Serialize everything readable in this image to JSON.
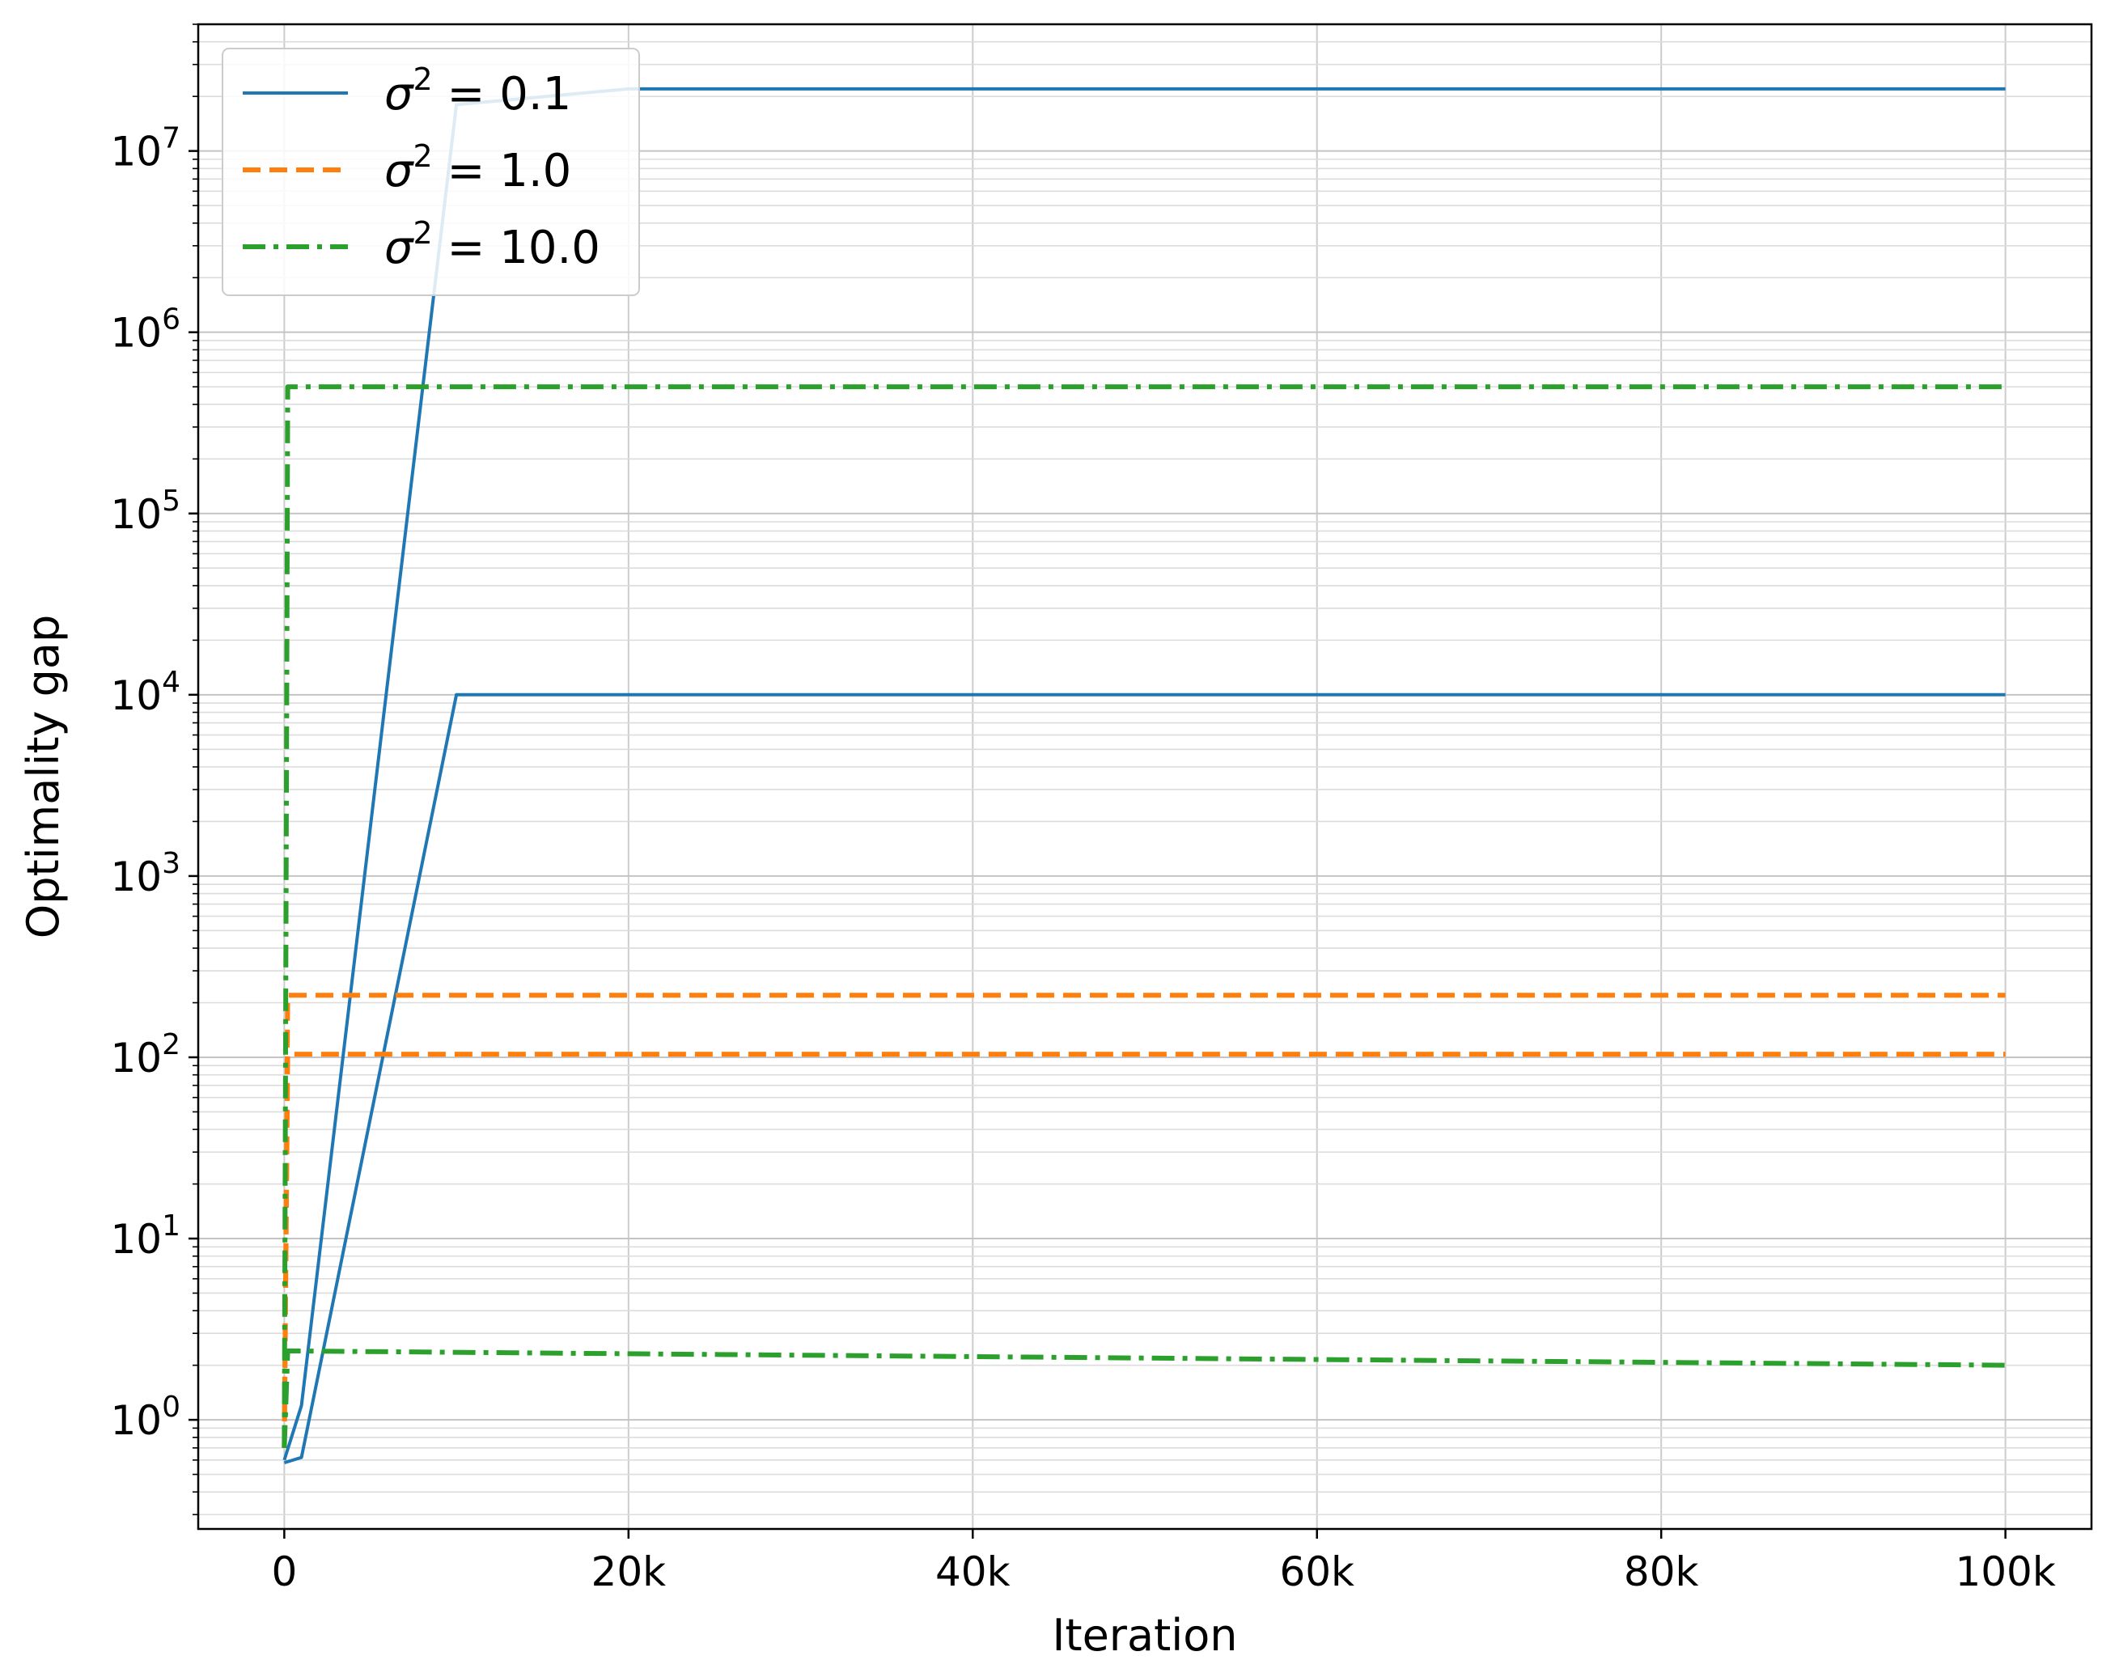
{
  "chart_data": {
    "type": "line",
    "title": "",
    "xlabel": "Iteration",
    "ylabel": "Optimality gap",
    "x_scale": "linear",
    "y_scale": "log",
    "xlim": [
      -5000,
      105000
    ],
    "ylim": [
      0.25,
      50000000
    ],
    "x_ticks": [
      {
        "value": 0,
        "label": "0"
      },
      {
        "value": 20000,
        "label": "20k"
      },
      {
        "value": 40000,
        "label": "40k"
      },
      {
        "value": 60000,
        "label": "60k"
      },
      {
        "value": 80000,
        "label": "80k"
      },
      {
        "value": 100000,
        "label": "100k"
      }
    ],
    "y_ticks": [
      {
        "exp": 0,
        "base": "10",
        "sup": "0"
      },
      {
        "exp": 1,
        "base": "10",
        "sup": "1"
      },
      {
        "exp": 2,
        "base": "10",
        "sup": "2"
      },
      {
        "exp": 3,
        "base": "10",
        "sup": "3"
      },
      {
        "exp": 4,
        "base": "10",
        "sup": "4"
      },
      {
        "exp": 5,
        "base": "10",
        "sup": "5"
      },
      {
        "exp": 6,
        "base": "10",
        "sup": "6"
      },
      {
        "exp": 7,
        "base": "10",
        "sup": "7"
      }
    ],
    "grid": true,
    "grid_minor": true,
    "legend_position": "top-left",
    "legend": [
      {
        "sigma": "σ",
        "sup": "2",
        "eq": " = 0.1",
        "color": "#1f77b4",
        "style": "solid"
      },
      {
        "sigma": "σ",
        "sup": "2",
        "eq": " = 1.0",
        "color": "#ff7f0e",
        "style": "dashed"
      },
      {
        "sigma": "σ",
        "sup": "2",
        "eq": " = 10.0",
        "color": "#2ca02c",
        "style": "dashdot"
      }
    ],
    "series": [
      {
        "group": 0,
        "color": "#1f77b4",
        "style": "solid",
        "points": [
          [
            0,
            0.6
          ],
          [
            1000,
            1.2
          ],
          [
            10000,
            18000000
          ],
          [
            20000,
            22000000
          ],
          [
            100000,
            22000000
          ]
        ]
      },
      {
        "group": 0,
        "color": "#1f77b4",
        "style": "solid",
        "points": [
          [
            0,
            0.58
          ],
          [
            1000,
            0.62
          ],
          [
            10000,
            10000
          ],
          [
            100000,
            10000
          ]
        ]
      },
      {
        "group": 1,
        "color": "#ff7f0e",
        "style": "dashed",
        "points": [
          [
            0,
            0.7
          ],
          [
            200,
            220
          ],
          [
            100000,
            220
          ]
        ]
      },
      {
        "group": 1,
        "color": "#ff7f0e",
        "style": "dashed",
        "points": [
          [
            0,
            0.7
          ],
          [
            200,
            104
          ],
          [
            100000,
            104
          ]
        ]
      },
      {
        "group": 2,
        "color": "#2ca02c",
        "style": "dashdot",
        "points": [
          [
            0,
            0.7
          ],
          [
            200,
            500000
          ],
          [
            100000,
            500000
          ]
        ]
      },
      {
        "group": 2,
        "color": "#2ca02c",
        "style": "dashdot",
        "points": [
          [
            0,
            0.7
          ],
          [
            200,
            2.4
          ],
          [
            100000,
            2.0
          ]
        ]
      }
    ]
  }
}
